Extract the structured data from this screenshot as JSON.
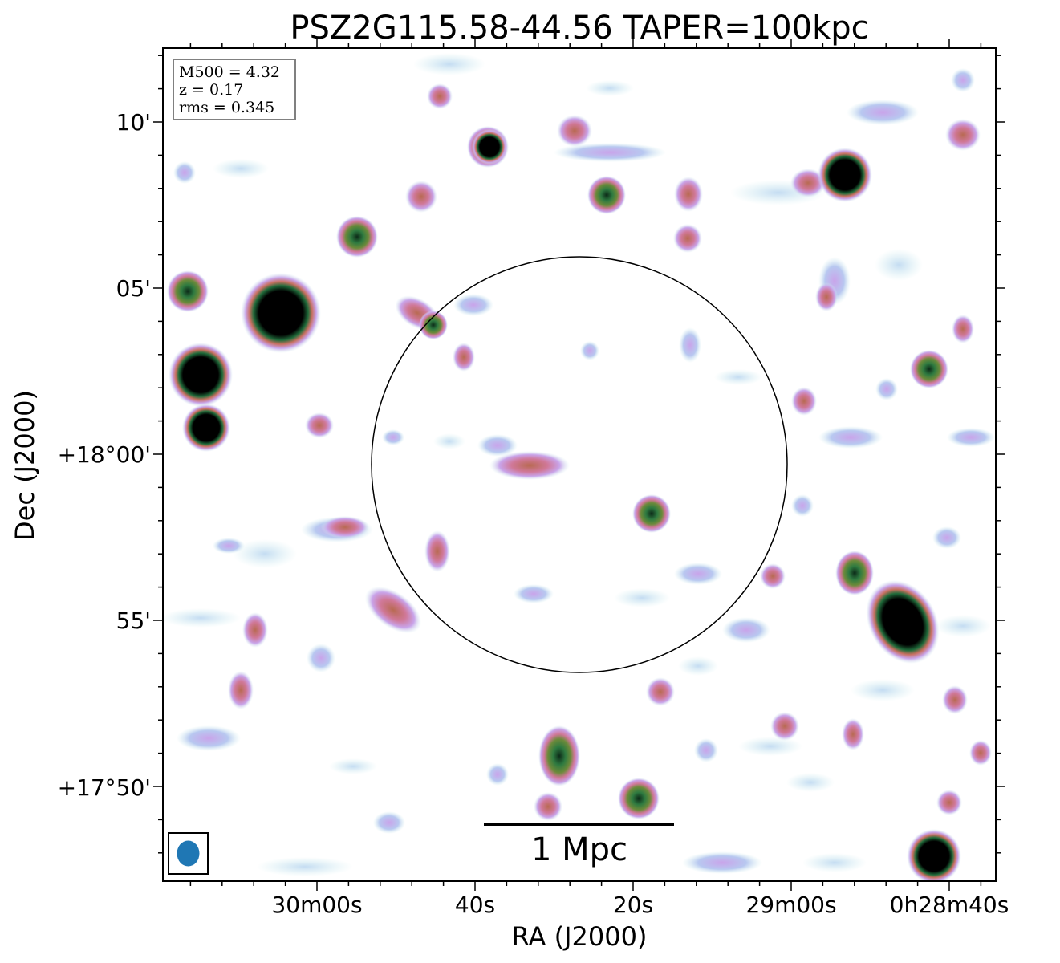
{
  "title": "PSZ2G115.58-44.56 TAPER=100kpc",
  "xlabel": "RA (J2000)",
  "ylabel": "Dec (J2000)",
  "x_ticks": [
    "30m00s",
    "40s",
    "20s",
    "29m00s",
    "0h28m40s"
  ],
  "y_ticks": [
    "10'",
    "05'",
    "+18°00'",
    "55'",
    "+17°50'"
  ],
  "info": {
    "m500": "M500 = 4.32",
    "z": "z = 0.17",
    "rms": "rms = 0.345"
  },
  "scale_bar_label": "1 Mpc",
  "colormap": [
    "#ffffff",
    "#d2eef0",
    "#b8c8f0",
    "#c9a4ea",
    "#d07898",
    "#c87060",
    "#4a8a4a",
    "#1f6b3a",
    "#000000"
  ],
  "beam_color": "#1f77b4",
  "sources": [
    {
      "id": "src-1",
      "ra": "0h30m10s",
      "level": "peak"
    },
    {
      "id": "src-2",
      "ra": "0h29m00s",
      "level": "peak"
    }
  ]
}
